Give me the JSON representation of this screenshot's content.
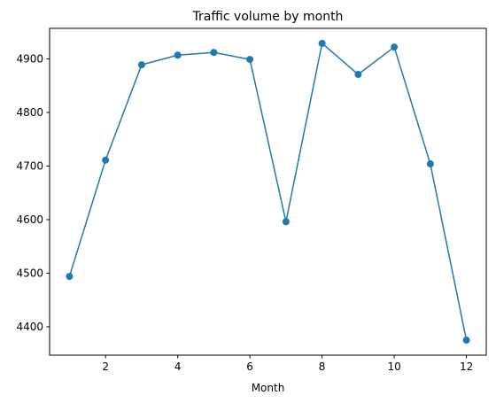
{
  "chart_data": {
    "type": "line",
    "title": "Traffic volume by month",
    "xlabel": "Month",
    "ylabel": "",
    "x": [
      1,
      2,
      3,
      4,
      5,
      6,
      7,
      8,
      9,
      10,
      11,
      12
    ],
    "series": [
      {
        "values": [
          4494,
          4711,
          4889,
          4907,
          4912,
          4899,
          4596,
          4929,
          4871,
          4922,
          4704,
          4375
        ]
      }
    ],
    "xlim": [
      0.45,
      12.55
    ],
    "ylim": [
      4347,
      4957
    ],
    "xticks": [
      2,
      4,
      6,
      8,
      10,
      12
    ],
    "yticks": [
      4400,
      4500,
      4600,
      4700,
      4800,
      4900
    ],
    "grid": false,
    "line_color": "#1f77b4",
    "marker": "circle"
  }
}
